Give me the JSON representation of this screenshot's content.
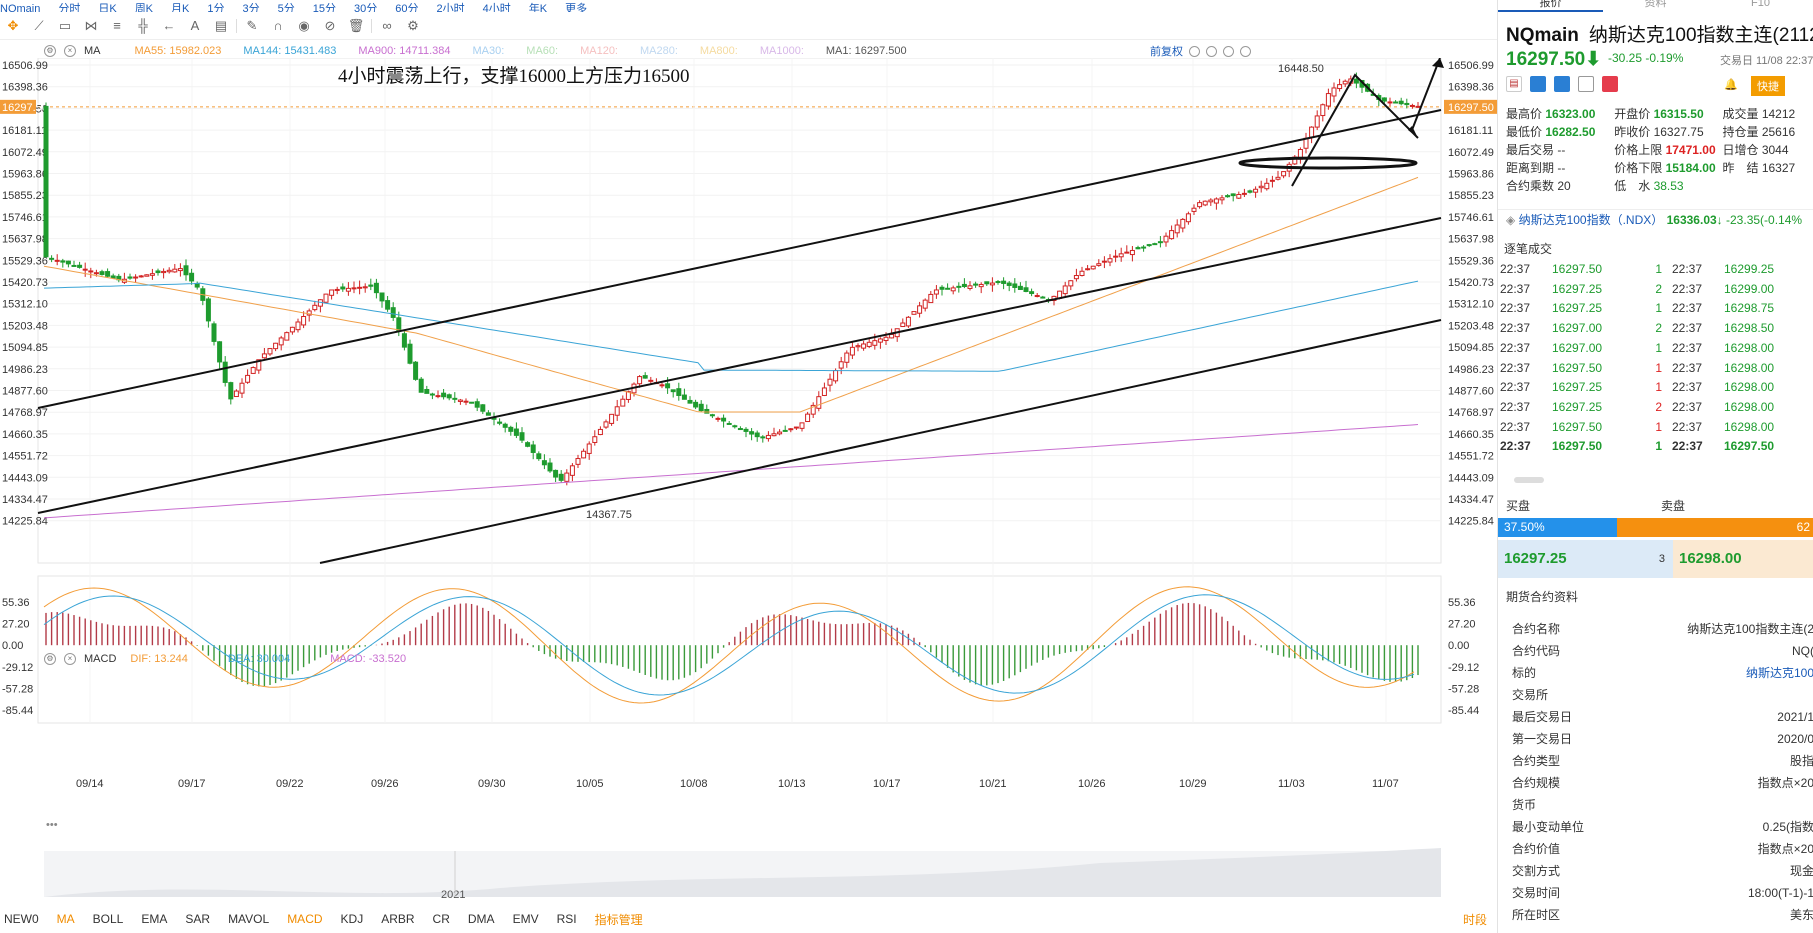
{
  "top_menu": [
    "NQmain",
    "分时",
    "日K",
    "周K",
    "月K",
    "1分",
    "3分",
    "5分",
    "15分",
    "30分",
    "60分",
    "2小时",
    "4小时",
    "年K",
    "更多"
  ],
  "annotation_text": "4小时震荡上行，支撑16000上方压力16500",
  "ma_legend": [
    {
      "label": "MA",
      "color": "#333333"
    },
    {
      "label": "MA55: 15982.023",
      "color": "#f39c37"
    },
    {
      "label": "MA144: 15431.483",
      "color": "#3aa4d6"
    },
    {
      "label": "MA900: 14711.384",
      "color": "#c86fd0"
    },
    {
      "label": "MA30:",
      "color": "#a8d0f0"
    },
    {
      "label": "MA60:",
      "color": "#b7e0b7"
    },
    {
      "label": "MA120:",
      "color": "#f5c0c0"
    },
    {
      "label": "MA280:",
      "color": "#c0d8f0"
    },
    {
      "label": "MA800:",
      "color": "#f5dba0"
    },
    {
      "label": "MA1000:",
      "color": "#d8b8e8"
    },
    {
      "label": "MA1: 16297.500",
      "color": "#555555"
    }
  ],
  "fq_label": "前复权",
  "macd_legend": [
    {
      "label": "MACD",
      "color": "#333333"
    },
    {
      "label": "DIF: 13.244",
      "color": "#f39c37"
    },
    {
      "label": "DEA: 30.004",
      "color": "#3aa4d6"
    },
    {
      "label": "MACD: -33.520",
      "color": "#c86fd0"
    }
  ],
  "chart_data": {
    "type": "candlestick",
    "y_ticks_price": [
      "16506.99",
      "16398.36",
      "16297.50",
      "16181.11",
      "16072.49",
      "15963.86",
      "15855.23",
      "15746.61",
      "15637.98",
      "15529.36",
      "15420.73",
      "15312.10",
      "15203.48",
      "15094.85",
      "14986.23",
      "14877.60",
      "14768.97",
      "14660.35",
      "14551.72",
      "14443.09",
      "14334.47",
      "14225.84"
    ],
    "y_ticks_macd": [
      "55.36",
      "27.20",
      "0.00",
      "-29.12",
      "-57.28",
      "-85.44"
    ],
    "x_ticks": [
      "09/14",
      "09/17",
      "09/22",
      "09/26",
      "09/30",
      "10/05",
      "10/08",
      "10/13",
      "10/17",
      "10/21",
      "10/26",
      "10/29",
      "11/03",
      "11/07"
    ],
    "year_label": "2021",
    "high_label": "16448.50",
    "low_label": "14367.75",
    "current_price": "16297.50",
    "ylim": [
      14225.84,
      16506.99
    ]
  },
  "indicators": [
    "NEW0",
    "MA",
    "BOLL",
    "EMA",
    "SAR",
    "MAVOL",
    "MACD",
    "KDJ",
    "ARBR",
    "CR",
    "DMA",
    "EMV",
    "RSI",
    "指标管理"
  ],
  "timeshare": "时段",
  "panel": {
    "tabs": [
      "报价",
      "资料",
      "F10"
    ],
    "symbol": "NQmain",
    "name": "纳斯达克100指数主连(2112)",
    "price": "16297.50",
    "change": "-30.25  -0.19%",
    "trade_time": "交易日 11/08 22:37",
    "quick_label": "快捷",
    "stats": [
      [
        {
          "k": "最高价",
          "v": "16323.00",
          "c": "green"
        },
        {
          "k": "开盘价",
          "v": "16315.50",
          "c": "green"
        },
        {
          "k": "成交量",
          "v": "14212",
          "c": ""
        }
      ],
      [
        {
          "k": "最低价",
          "v": "16282.50",
          "c": "green"
        },
        {
          "k": "昨收价",
          "v": "16327.75",
          "c": ""
        },
        {
          "k": "持仓量",
          "v": "25616",
          "c": ""
        }
      ],
      [
        {
          "k": "最后交易",
          "v": "--",
          "c": ""
        },
        {
          "k": "价格上限",
          "v": "17471.00",
          "c": "red"
        },
        {
          "k": "日增仓",
          "v": "3044",
          "c": ""
        }
      ],
      [
        {
          "k": "距离到期",
          "v": "--",
          "c": ""
        },
        {
          "k": "价格下限",
          "v": "15184.00",
          "c": "green"
        },
        {
          "k": "昨　结",
          "v": "16327",
          "c": ""
        }
      ],
      [
        {
          "k": "合约乘数",
          "v": "20",
          "c": ""
        },
        {
          "k": "低　水",
          "v": "38.53",
          "c": "green"
        },
        {
          "k": "",
          "v": "",
          "c": ""
        }
      ]
    ],
    "ndx_name": "纳斯达克100指数（.NDX）",
    "ndx_price": "16336.03",
    "ndx_change": "-23.35(-0.14%",
    "tick_title": "逐笔成交",
    "ticks": [
      {
        "t1": "22:37",
        "p1": "16297.50",
        "v": "1",
        "vc": "green",
        "t2": "22:37",
        "p2": "16299.25"
      },
      {
        "t1": "22:37",
        "p1": "16297.25",
        "v": "2",
        "vc": "green",
        "t2": "22:37",
        "p2": "16299.00"
      },
      {
        "t1": "22:37",
        "p1": "16297.25",
        "v": "1",
        "vc": "green",
        "t2": "22:37",
        "p2": "16298.75"
      },
      {
        "t1": "22:37",
        "p1": "16297.00",
        "v": "2",
        "vc": "green",
        "t2": "22:37",
        "p2": "16298.50"
      },
      {
        "t1": "22:37",
        "p1": "16297.00",
        "v": "1",
        "vc": "green",
        "t2": "22:37",
        "p2": "16298.00"
      },
      {
        "t1": "22:37",
        "p1": "16297.50",
        "v": "1",
        "vc": "red",
        "t2": "22:37",
        "p2": "16298.00"
      },
      {
        "t1": "22:37",
        "p1": "16297.25",
        "v": "1",
        "vc": "red",
        "t2": "22:37",
        "p2": "16298.00"
      },
      {
        "t1": "22:37",
        "p1": "16297.25",
        "v": "2",
        "vc": "red",
        "t2": "22:37",
        "p2": "16298.00"
      },
      {
        "t1": "22:37",
        "p1": "16297.50",
        "v": "1",
        "vc": "red",
        "t2": "22:37",
        "p2": "16298.00"
      },
      {
        "t1": "22:37",
        "p1": "16297.50",
        "v": "1",
        "vc": "green",
        "t2": "22:37",
        "p2": "16297.50"
      }
    ],
    "buy_label": "买盘",
    "sell_label": "卖盘",
    "buy_pct": "37.50%",
    "sell_pct": "62",
    "bid_price": "16297.25",
    "bid_qty": "3",
    "ask_price": "16298.00",
    "info_title": "期货合约资料",
    "info": [
      {
        "k": "合约名称",
        "v": "纳斯达克100指数主连(2",
        "link": false
      },
      {
        "k": "合约代码",
        "v": "NQ(",
        "link": false
      },
      {
        "k": "标的",
        "v": "纳斯达克100",
        "link": true
      },
      {
        "k": "交易所",
        "v": "",
        "link": false
      },
      {
        "k": "最后交易日",
        "v": "2021/1",
        "link": false
      },
      {
        "k": "第一交易日",
        "v": "2020/0",
        "link": false
      },
      {
        "k": "合约类型",
        "v": "股指",
        "link": false
      },
      {
        "k": "合约规模",
        "v": "指数点×20",
        "link": false
      },
      {
        "k": "货币",
        "v": "",
        "link": false
      },
      {
        "k": "最小变动单位",
        "v": "0.25(指数",
        "link": false
      },
      {
        "k": "合约价值",
        "v": "指数点×20",
        "link": false
      },
      {
        "k": "交割方式",
        "v": "现金",
        "link": false
      },
      {
        "k": "交易时间",
        "v": "18:00(T-1)-1",
        "link": false
      },
      {
        "k": "所在时区",
        "v": "美东",
        "link": false
      }
    ]
  },
  "colors": {
    "up": "#d22222",
    "down": "#1e9b2e",
    "accent": "#f08c00",
    "link": "#1a5bb8"
  }
}
